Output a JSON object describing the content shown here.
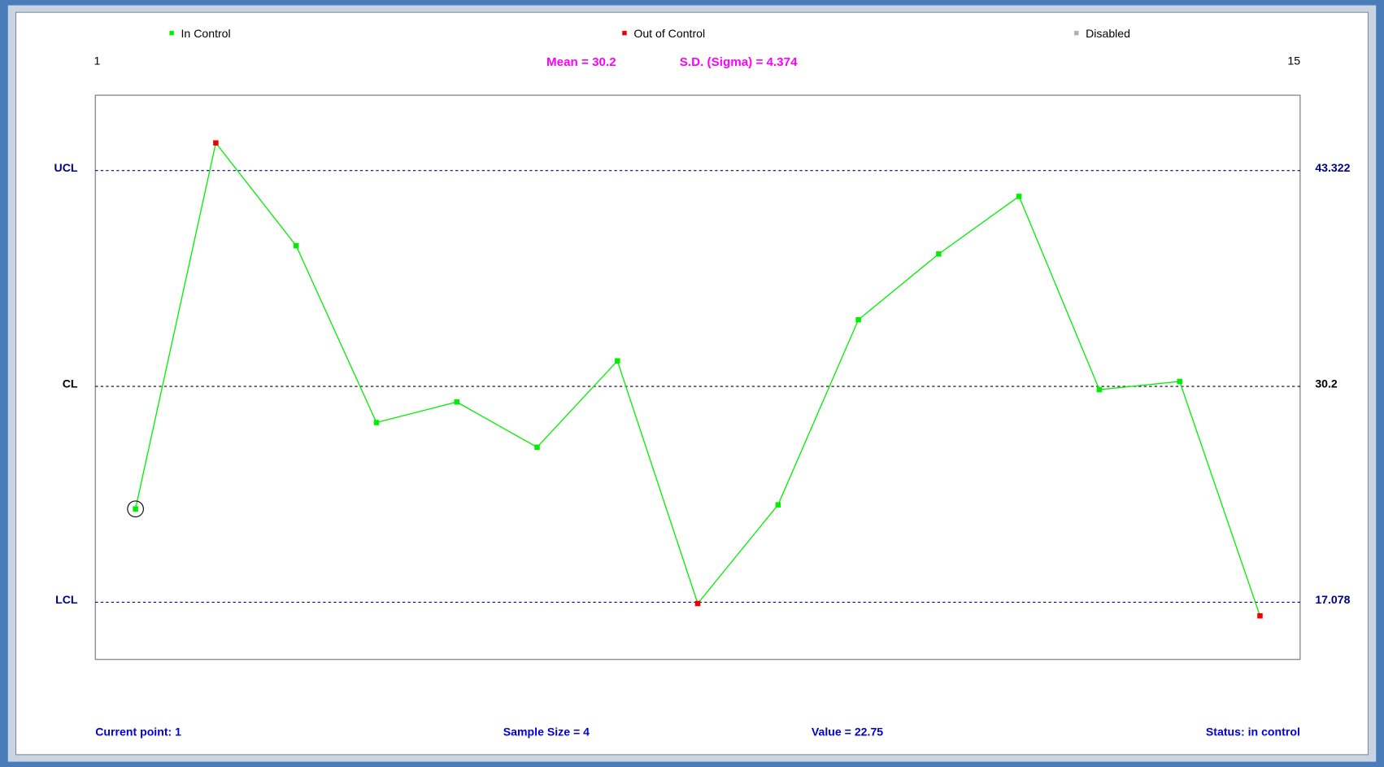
{
  "chart_data": {
    "type": "line",
    "legend": [
      {
        "name": "In Control",
        "color": "#00ee00"
      },
      {
        "name": "Out of Control",
        "color": "#ee0000"
      },
      {
        "name": "Disabled",
        "color": "#b0b0b0"
      }
    ],
    "subtitle": [
      "Mean = 30.2",
      "S.D. (Sigma) = 4.374"
    ],
    "x": [
      1,
      2,
      3,
      4,
      5,
      6,
      7,
      8,
      9,
      10,
      11,
      12,
      13,
      14,
      15
    ],
    "xlim": [
      0.5,
      15.5
    ],
    "ylim": [
      13.6,
      47.9
    ],
    "series": [
      {
        "name": "In Control",
        "color": "#00ee00",
        "values": [
          22.75,
          45.0,
          38.75,
          28.0,
          29.25,
          26.5,
          31.75,
          17.0,
          23.0,
          34.25,
          38.25,
          41.75,
          30.0,
          30.5,
          16.25
        ]
      }
    ],
    "control_lines": [
      {
        "name": "UCL",
        "value": 43.322,
        "color": "#000080"
      },
      {
        "name": "CL",
        "value": 30.2,
        "color": "#000000"
      },
      {
        "name": "LCL",
        "value": 17.078,
        "color": "#000080"
      }
    ],
    "current_point": 1,
    "footer": [
      "Current point: 1",
      "Sample Size = 4",
      "Value = 22.75",
      "Status: in control"
    ]
  }
}
